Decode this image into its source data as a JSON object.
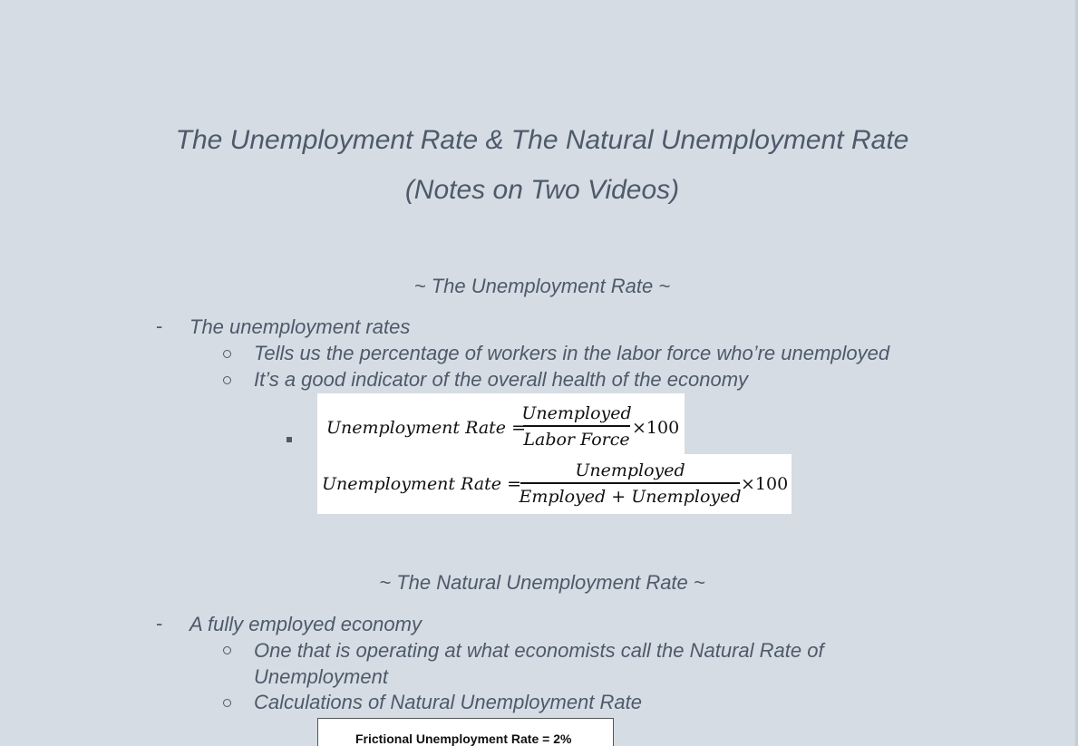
{
  "title": {
    "line1": "The Unemployment Rate & The Natural Unemployment Rate",
    "line2": "(Notes on Two Videos)"
  },
  "section1": {
    "heading": "~ The Unemployment Rate ~",
    "bullet": "The unemployment rates",
    "subbullets": [
      "Tells us the percentage of workers in the labor force who’re unemployed",
      "It’s a good indicator of the overall health of the economy"
    ],
    "formula1": {
      "lhs": "Unemployment Rate =",
      "numerator": "Unemployed",
      "denominator": "Labor Force",
      "multiplier": "×100"
    },
    "formula2": {
      "lhs": "Unemployment Rate =",
      "numerator": "Unemployed",
      "denominator": "Employed + Unemployed",
      "multiplier": "×100"
    }
  },
  "section2": {
    "heading": "~ The Natural Unemployment Rate ~",
    "bullet": "A fully employed economy",
    "subbullets": [
      {
        "line1": "One that is operating at what economists call the Natural Rate of",
        "line2": "Unemployment"
      },
      {
        "line1": "Calculations of Natural Unemployment Rate"
      }
    ],
    "table_cell": "Frictional Unemployment Rate = 2%"
  },
  "bullet_dash": "-"
}
